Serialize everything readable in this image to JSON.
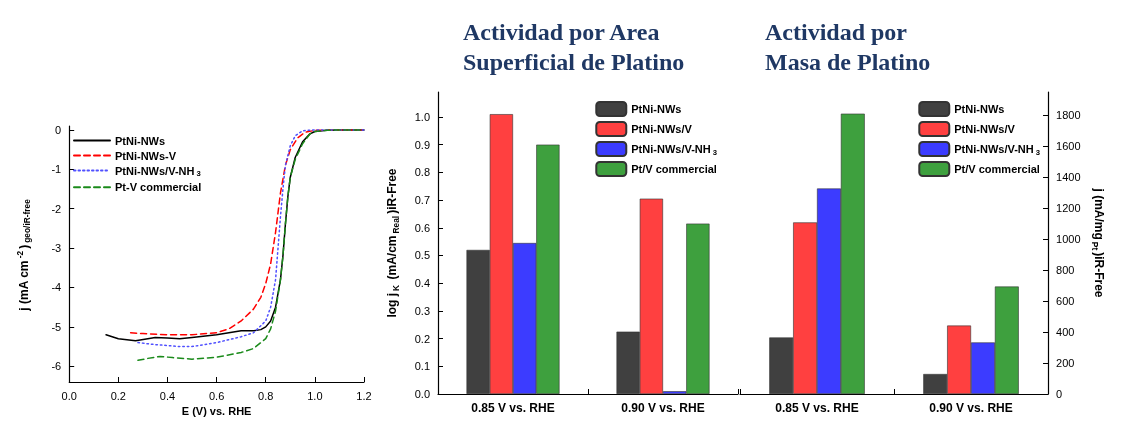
{
  "chart_data": [
    {
      "type": "line",
      "xlabel": "E (V) vs. RHE",
      "ylabel": "j (mA cm$^{-2}$)$_{geo/iR-free}$",
      "xlim": [
        0,
        1.2
      ],
      "xticks": [
        {
          "value": 0,
          "label": "0.0"
        },
        0.2,
        0.4,
        0.6,
        0.8,
        {
          "value": 1,
          "label": "1.0"
        },
        1.2
      ],
      "ylim": [
        -6.4,
        0.1
      ],
      "yticks": [
        -6,
        -5,
        -4,
        -3,
        -2,
        -1,
        0
      ],
      "grid": false,
      "legend": "top left",
      "marker": "none",
      "series": [
        {
          "name": "PtNi-NWs",
          "color": "#000000",
          "line_style": "solid",
          "x": [
            0.15,
            0.2,
            0.27,
            0.32,
            0.35,
            0.4,
            0.45,
            0.5,
            0.6,
            0.65,
            0.7,
            0.75,
            0.78,
            0.8,
            0.82,
            0.84,
            0.86,
            0.87,
            0.88,
            0.89,
            0.9,
            0.92,
            0.95,
            0.98,
            1.0,
            1.05,
            1.1,
            1.2
          ],
          "values": [
            -5.2,
            -5.3,
            -5.35,
            -5.3,
            -5.27,
            -5.28,
            -5.3,
            -5.27,
            -5.2,
            -5.15,
            -5.1,
            -5.1,
            -5.07,
            -5.0,
            -4.85,
            -4.5,
            -3.8,
            -3.2,
            -2.4,
            -1.7,
            -1.2,
            -0.7,
            -0.3,
            -0.1,
            -0.04,
            -0.01,
            0,
            0
          ]
        },
        {
          "name": "PtNi-NWs-V",
          "color": "#ff0000",
          "line_style": "dashed",
          "x": [
            0.25,
            0.3,
            0.4,
            0.5,
            0.6,
            0.65,
            0.7,
            0.75,
            0.78,
            0.8,
            0.82,
            0.84,
            0.86,
            0.88,
            0.9,
            0.93,
            0.96,
            1.0,
            1.1,
            1.2
          ],
          "values": [
            -5.15,
            -5.17,
            -5.2,
            -5.2,
            -5.15,
            -5.05,
            -4.85,
            -4.55,
            -4.25,
            -3.9,
            -3.4,
            -2.6,
            -1.6,
            -0.9,
            -0.5,
            -0.2,
            -0.06,
            -0.01,
            0,
            0
          ]
        },
        {
          "name": "PtNi-NWs/V-NH$_{3}$",
          "color": "#5050ff",
          "line_style": "dotted",
          "x": [
            0.28,
            0.35,
            0.45,
            0.5,
            0.6,
            0.7,
            0.75,
            0.8,
            0.82,
            0.84,
            0.85,
            0.86,
            0.87,
            0.88,
            0.9,
            0.92,
            0.95,
            1.0,
            1.2
          ],
          "values": [
            -5.4,
            -5.45,
            -5.5,
            -5.5,
            -5.4,
            -5.25,
            -5.15,
            -4.85,
            -4.5,
            -3.8,
            -3.0,
            -2.2,
            -1.5,
            -0.9,
            -0.4,
            -0.15,
            -0.02,
            0,
            0
          ]
        },
        {
          "name": "Pt-V commercial",
          "color": "#1a8a1a",
          "line_style": "dashed",
          "x": [
            0.28,
            0.32,
            0.37,
            0.42,
            0.5,
            0.6,
            0.7,
            0.75,
            0.8,
            0.82,
            0.84,
            0.86,
            0.87,
            0.88,
            0.89,
            0.9,
            0.92,
            0.95,
            0.98,
            1.0,
            1.05,
            1.1,
            1.2
          ],
          "values": [
            -5.85,
            -5.8,
            -5.75,
            -5.78,
            -5.82,
            -5.77,
            -5.65,
            -5.55,
            -5.3,
            -5.05,
            -4.6,
            -3.8,
            -3.2,
            -2.4,
            -1.7,
            -1.2,
            -0.75,
            -0.35,
            -0.1,
            -0.04,
            -0.01,
            0,
            0
          ]
        }
      ]
    },
    {
      "type": "bar",
      "title": "Actividad por Area Superficial de Platino",
      "ylabel": "log j$_{K}$ (mA/cm$_{Real}$)iR-Free",
      "categories": [
        "0.85 V vs. RHE",
        "0.90 V vs. RHE"
      ],
      "ylim": [
        0,
        1.09
      ],
      "yticks": [
        {
          "value": 0,
          "label": "0.0"
        },
        0.1,
        0.2,
        0.3,
        0.4,
        0.5,
        0.6,
        0.7,
        0.8,
        0.9,
        {
          "value": 1,
          "label": "1.0"
        }
      ],
      "grid": false,
      "legend": "top right",
      "series": [
        {
          "name": "PtNi-NWs",
          "color": "#404040",
          "values": [
            0.52,
            0.225
          ]
        },
        {
          "name": "PtNi-NWs/V",
          "color": "#ff4040",
          "values": [
            1.01,
            0.705
          ]
        },
        {
          "name": "PtNi-NWs/V-NH$_{3}$",
          "color": "#3c3cff",
          "values": [
            0.545,
            0.01
          ]
        },
        {
          "name": "Pt/V commercial",
          "color": "#3ea03e",
          "values": [
            0.9,
            0.615
          ]
        }
      ]
    },
    {
      "type": "bar",
      "title": "Actividad por Masa de Platino",
      "y2label": "j (mA/mg$_{Pt}$)iR-Free",
      "categories": [
        "0.85 V vs. RHE",
        "0.90 V vs. RHE"
      ],
      "y2lim": [
        0,
        1950
      ],
      "y2ticks": [
        0,
        200,
        400,
        600,
        800,
        1000,
        1200,
        1400,
        1600,
        1800
      ],
      "grid": false,
      "legend": "top right",
      "series": [
        {
          "name": "PtNi-NWs",
          "color": "#404040",
          "axis": "y2",
          "values": [
            365,
            129
          ]
        },
        {
          "name": "PtNi-NWs/V",
          "color": "#ff4040",
          "axis": "y2",
          "values": [
            1108,
            442
          ]
        },
        {
          "name": "PtNi-NWs/V-NH$_{3}$",
          "color": "#3c3cff",
          "axis": "y2",
          "values": [
            1327,
            333
          ]
        },
        {
          "name": "Pt/V commercial",
          "color": "#3ea03e",
          "axis": "y2",
          "values": [
            1810,
            694
          ]
        }
      ]
    }
  ]
}
